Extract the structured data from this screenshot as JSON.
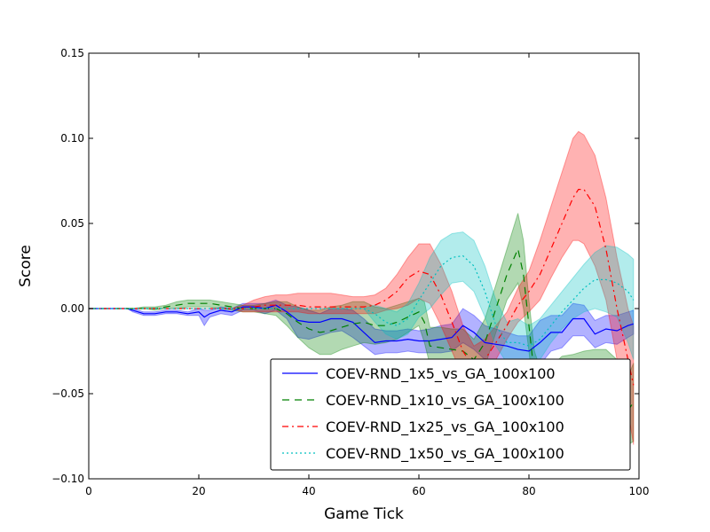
{
  "chart_data": {
    "type": "line",
    "title": "",
    "xlabel": "Game Tick",
    "ylabel": "Score",
    "xlim": [
      0,
      100
    ],
    "ylim": [
      -0.1,
      0.15
    ],
    "x_ticks": [
      0,
      20,
      40,
      60,
      80,
      100
    ],
    "x_tick_labels": [
      "0",
      "20",
      "40",
      "60",
      "80",
      "100"
    ],
    "y_ticks": [
      -0.1,
      -0.05,
      0.0,
      0.05,
      0.1,
      0.15
    ],
    "y_tick_labels": [
      "−0.10",
      "−0.05",
      "0.00",
      "0.05",
      "0.10",
      "0.15"
    ],
    "grid": false,
    "legend_position": "bottom-right",
    "series": [
      {
        "name": "COEV-RND_1x5_vs_GA_100x100",
        "color": "#0000ff",
        "line_style": "solid",
        "x": [
          0,
          7,
          8,
          10,
          12,
          14,
          16,
          18,
          20,
          21,
          22,
          24,
          26,
          28,
          30,
          32,
          34,
          36,
          38,
          40,
          42,
          44,
          46,
          48,
          50,
          52,
          54,
          56,
          58,
          60,
          62,
          64,
          66,
          68,
          70,
          72,
          74,
          76,
          78,
          80,
          82,
          84,
          86,
          88,
          90,
          92,
          94,
          96,
          98,
          99
        ],
        "y": [
          0,
          0,
          -0.001,
          -0.003,
          -0.003,
          -0.002,
          -0.002,
          -0.003,
          -0.002,
          -0.005,
          -0.003,
          -0.001,
          -0.002,
          0.001,
          0.001,
          0.0,
          0.002,
          -0.002,
          -0.007,
          -0.008,
          -0.008,
          -0.006,
          -0.006,
          -0.008,
          -0.014,
          -0.02,
          -0.019,
          -0.019,
          -0.018,
          -0.019,
          -0.019,
          -0.018,
          -0.017,
          -0.01,
          -0.014,
          -0.02,
          -0.021,
          -0.022,
          -0.024,
          -0.025,
          -0.02,
          -0.014,
          -0.014,
          -0.006,
          -0.006,
          -0.015,
          -0.012,
          -0.013,
          -0.01,
          -0.009
        ],
        "lower": [
          0,
          0,
          -0.002,
          -0.004,
          -0.004,
          -0.003,
          -0.003,
          -0.004,
          -0.004,
          -0.01,
          -0.005,
          -0.003,
          -0.004,
          -0.001,
          -0.001,
          -0.003,
          -0.001,
          -0.006,
          -0.017,
          -0.018,
          -0.016,
          -0.014,
          -0.013,
          -0.017,
          -0.022,
          -0.027,
          -0.026,
          -0.026,
          -0.025,
          -0.026,
          -0.026,
          -0.026,
          -0.025,
          -0.02,
          -0.024,
          -0.03,
          -0.03,
          -0.03,
          -0.032,
          -0.034,
          -0.033,
          -0.025,
          -0.023,
          -0.016,
          -0.016,
          -0.023,
          -0.02,
          -0.021,
          -0.017,
          -0.015
        ],
        "upper": [
          0,
          0,
          0.0,
          -0.002,
          -0.002,
          -0.001,
          -0.001,
          -0.002,
          0.0,
          -0.001,
          -0.001,
          0.001,
          0.0,
          0.003,
          0.003,
          0.003,
          0.005,
          0.002,
          0.001,
          -0.001,
          -0.003,
          0.0,
          0.0,
          -0.001,
          -0.006,
          -0.012,
          -0.013,
          -0.013,
          -0.012,
          -0.013,
          -0.012,
          -0.01,
          -0.009,
          0.0,
          -0.004,
          -0.01,
          -0.012,
          -0.014,
          -0.016,
          -0.016,
          -0.007,
          -0.004,
          -0.004,
          0.003,
          0.002,
          -0.007,
          -0.004,
          -0.004,
          -0.002,
          -0.001
        ]
      },
      {
        "name": "COEV-RND_1x10_vs_GA_100x100",
        "color": "#008000",
        "line_style": "dashed",
        "x": [
          0,
          8,
          10,
          12,
          14,
          16,
          18,
          20,
          22,
          24,
          26,
          28,
          30,
          32,
          34,
          36,
          38,
          40,
          42,
          44,
          46,
          48,
          50,
          52,
          54,
          56,
          58,
          60,
          61,
          62,
          64,
          66,
          68,
          70,
          72,
          74,
          76,
          78,
          79,
          80,
          81,
          82,
          84,
          86,
          88,
          90,
          92,
          94,
          96,
          98,
          99
        ],
        "y": [
          0,
          0,
          0.0,
          0.0,
          0.001,
          0.002,
          0.003,
          0.003,
          0.003,
          0.002,
          0.001,
          0.0,
          0.0,
          0.0,
          0.0,
          -0.003,
          -0.008,
          -0.012,
          -0.014,
          -0.013,
          -0.011,
          -0.009,
          -0.008,
          -0.01,
          -0.01,
          -0.008,
          -0.005,
          -0.002,
          -0.008,
          -0.022,
          -0.023,
          -0.024,
          -0.025,
          -0.03,
          -0.02,
          0.0,
          0.02,
          0.035,
          0.02,
          -0.01,
          -0.04,
          -0.05,
          -0.05,
          -0.045,
          -0.045,
          -0.045,
          -0.045,
          -0.045,
          -0.05,
          -0.06,
          -0.055
        ],
        "lower": [
          0,
          0,
          0.0,
          -0.001,
          0.0,
          0.0,
          0.001,
          0.001,
          0.001,
          0.0,
          -0.001,
          -0.002,
          -0.002,
          -0.003,
          -0.004,
          -0.01,
          -0.017,
          -0.023,
          -0.027,
          -0.027,
          -0.024,
          -0.022,
          -0.02,
          -0.021,
          -0.02,
          -0.018,
          -0.014,
          -0.01,
          -0.02,
          -0.033,
          -0.035,
          -0.036,
          -0.038,
          -0.042,
          -0.034,
          -0.014,
          0.005,
          0.015,
          0.0,
          -0.025,
          -0.055,
          -0.065,
          -0.066,
          -0.062,
          -0.063,
          -0.065,
          -0.066,
          -0.066,
          -0.07,
          -0.08,
          -0.078
        ],
        "upper": [
          0,
          0,
          0.001,
          0.001,
          0.002,
          0.004,
          0.005,
          0.005,
          0.005,
          0.004,
          0.003,
          0.002,
          0.002,
          0.003,
          0.004,
          0.004,
          0.001,
          -0.001,
          -0.001,
          0.001,
          0.002,
          0.004,
          0.004,
          0.001,
          0.0,
          0.002,
          0.004,
          0.006,
          0.004,
          -0.011,
          -0.011,
          -0.012,
          -0.012,
          -0.018,
          -0.006,
          0.014,
          0.035,
          0.056,
          0.04,
          0.005,
          -0.025,
          -0.035,
          -0.034,
          -0.028,
          -0.027,
          -0.025,
          -0.024,
          -0.024,
          -0.03,
          -0.04,
          -0.032
        ]
      },
      {
        "name": "COEV-RND_1x25_vs_GA_100x100",
        "color": "#ff0000",
        "line_style": "dash-dot",
        "x": [
          0,
          26,
          28,
          30,
          32,
          34,
          36,
          38,
          40,
          42,
          44,
          46,
          48,
          50,
          52,
          54,
          56,
          58,
          60,
          62,
          64,
          66,
          68,
          70,
          72,
          74,
          76,
          78,
          80,
          82,
          84,
          86,
          88,
          89,
          90,
          92,
          94,
          96,
          98,
          99
        ],
        "y": [
          0,
          0,
          0.0,
          0.001,
          0.002,
          0.002,
          0.002,
          0.002,
          0.001,
          0.001,
          0.001,
          0.001,
          0.001,
          0.001,
          0.002,
          0.005,
          0.01,
          0.018,
          0.022,
          0.02,
          0.008,
          -0.008,
          -0.025,
          -0.035,
          -0.03,
          -0.02,
          -0.01,
          0.002,
          0.01,
          0.02,
          0.035,
          0.05,
          0.065,
          0.07,
          0.07,
          0.06,
          0.035,
          0.0,
          -0.03,
          -0.045
        ],
        "lower": [
          0,
          0,
          -0.002,
          -0.002,
          -0.002,
          -0.002,
          -0.002,
          -0.002,
          -0.003,
          -0.003,
          -0.003,
          -0.003,
          -0.003,
          -0.003,
          -0.003,
          -0.001,
          0.0,
          0.002,
          0.006,
          0.003,
          -0.01,
          -0.025,
          -0.04,
          -0.048,
          -0.042,
          -0.03,
          -0.018,
          -0.008,
          -0.002,
          0.005,
          0.018,
          0.03,
          0.04,
          0.04,
          0.038,
          0.025,
          0.005,
          -0.03,
          -0.06,
          -0.08
        ],
        "upper": [
          0,
          0,
          0.002,
          0.005,
          0.007,
          0.008,
          0.008,
          0.009,
          0.009,
          0.009,
          0.009,
          0.008,
          0.007,
          0.007,
          0.008,
          0.012,
          0.02,
          0.03,
          0.038,
          0.038,
          0.026,
          0.01,
          -0.01,
          -0.022,
          -0.018,
          -0.01,
          -0.002,
          0.012,
          0.022,
          0.04,
          0.06,
          0.08,
          0.1,
          0.104,
          0.102,
          0.09,
          0.065,
          0.03,
          0.0,
          -0.01
        ]
      },
      {
        "name": "COEV-RND_1x50_vs_GA_100x100",
        "color": "#00bfbf",
        "line_style": "dotted",
        "x": [
          0,
          50,
          52,
          54,
          56,
          58,
          60,
          62,
          64,
          66,
          68,
          70,
          72,
          74,
          76,
          78,
          80,
          82,
          84,
          86,
          88,
          90,
          92,
          94,
          96,
          98,
          99
        ],
        "y": [
          0,
          0,
          -0.003,
          -0.008,
          -0.01,
          -0.006,
          0.005,
          0.015,
          0.025,
          0.03,
          0.031,
          0.025,
          0.01,
          -0.01,
          -0.02,
          -0.02,
          -0.022,
          -0.018,
          -0.01,
          -0.002,
          0.005,
          0.012,
          0.017,
          0.017,
          0.015,
          0.01,
          0.005
        ],
        "lower": [
          0,
          0,
          -0.008,
          -0.015,
          -0.018,
          -0.015,
          -0.005,
          0.0,
          0.008,
          0.015,
          0.016,
          0.01,
          -0.005,
          -0.022,
          -0.032,
          -0.034,
          -0.035,
          -0.03,
          -0.02,
          -0.012,
          -0.006,
          -0.002,
          0.0,
          -0.002,
          -0.005,
          -0.02,
          -0.03
        ],
        "upper": [
          0,
          0,
          0.002,
          0.0,
          -0.002,
          0.003,
          0.015,
          0.03,
          0.04,
          0.044,
          0.045,
          0.04,
          0.025,
          0.005,
          -0.008,
          -0.006,
          -0.01,
          -0.006,
          0.002,
          0.01,
          0.018,
          0.026,
          0.033,
          0.037,
          0.036,
          0.032,
          0.029
        ]
      }
    ]
  }
}
